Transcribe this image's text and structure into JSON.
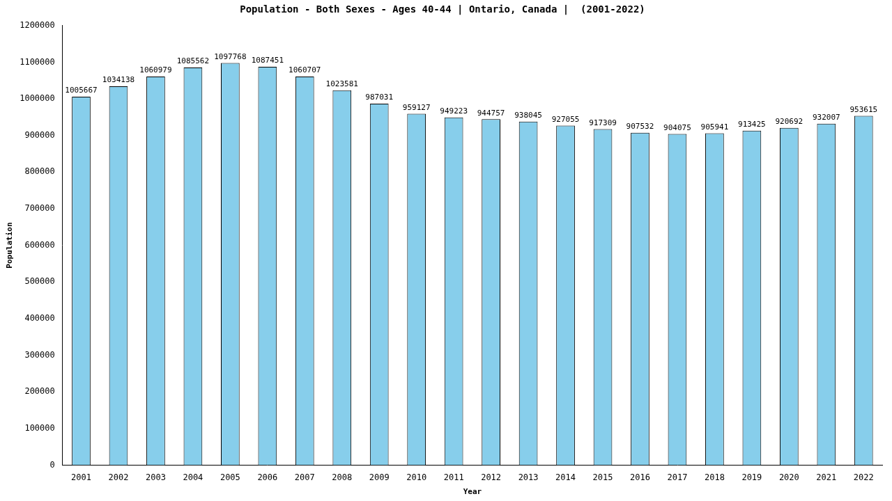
{
  "chart_data": {
    "type": "bar",
    "title": "Population - Both Sexes - Ages 40-44 | Ontario, Canada |  (2001-2022)",
    "x_label": "Year",
    "y_label": "Population",
    "categories": [
      "2001",
      "2002",
      "2003",
      "2004",
      "2005",
      "2006",
      "2007",
      "2008",
      "2009",
      "2010",
      "2011",
      "2012",
      "2013",
      "2014",
      "2015",
      "2016",
      "2017",
      "2018",
      "2019",
      "2020",
      "2021",
      "2022"
    ],
    "values": [
      1005667,
      1034138,
      1060979,
      1085562,
      1097768,
      1087451,
      1060707,
      1023581,
      987031,
      959127,
      949223,
      944757,
      938045,
      927055,
      917309,
      907532,
      904075,
      905941,
      913425,
      920692,
      932007,
      953615
    ],
    "color": "#87ceeb",
    "ylim": [
      0,
      1200000
    ],
    "yticks": [
      0,
      100000,
      200000,
      300000,
      400000,
      500000,
      600000,
      700000,
      800000,
      900000,
      1000000,
      1100000,
      1200000
    ],
    "grid": false,
    "data_labels": true
  }
}
